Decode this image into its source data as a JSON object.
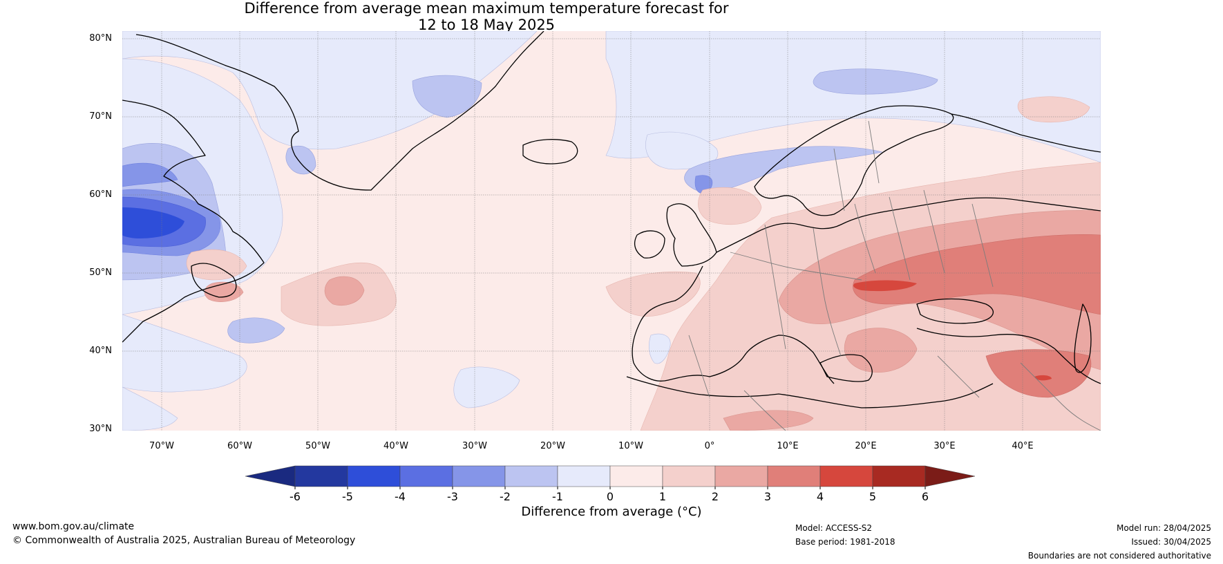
{
  "title": {
    "line1": "Difference from average mean maximum temperature forecast for",
    "line2": "12 to 18 May 2025"
  },
  "map": {
    "lat_labels": [
      "80°N",
      "70°N",
      "60°N",
      "50°N",
      "40°N",
      "30°N"
    ],
    "lon_labels": [
      "70°W",
      "60°W",
      "50°W",
      "40°W",
      "30°W",
      "20°W",
      "10°W",
      "0°",
      "10°E",
      "20°E",
      "30°E",
      "40°E"
    ],
    "lat_range": [
      30,
      80
    ],
    "lon_range": [
      -75,
      50
    ]
  },
  "colorbar": {
    "title": "Difference from average (°C)",
    "ticks": [
      "-6",
      "-5",
      "-4",
      "-3",
      "-2",
      "-1",
      "0",
      "1",
      "2",
      "3",
      "4",
      "5",
      "6"
    ],
    "colors": [
      "#23389f",
      "#2e4ed9",
      "#5b6fe2",
      "#8595e8",
      "#bcc4f1",
      "#e6eafb",
      "#fcebe9",
      "#f4d0cc",
      "#eaa8a3",
      "#e07f79",
      "#d6473d",
      "#a82a22"
    ],
    "under_color": "#1a2a80",
    "over_color": "#7b1c18"
  },
  "footer": {
    "website": "www.bom.gov.au/climate",
    "copyright": "© Commonwealth of Australia 2025, Australian Bureau of Meteorology",
    "model": "Model: ACCESS-S2",
    "base_period": "Base period: 1981-2018",
    "model_run": "Model run: 28/04/2025",
    "issued": "Issued: 30/04/2025",
    "disclaimer": "Boundaries are not considered authoritative"
  }
}
